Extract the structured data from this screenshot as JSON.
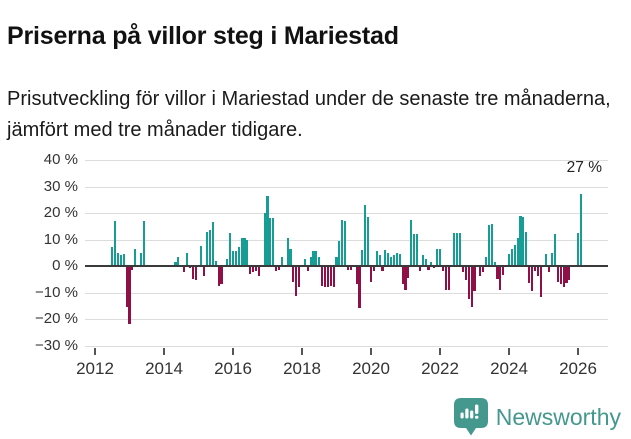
{
  "header": {
    "title": "Priserna på villor steg i Mariestad",
    "subtitle": "Prisutveckling för villor i Mariestad under de senaste tre månaderna, jämfört med tre månader tidigare."
  },
  "chart_data": {
    "type": "bar",
    "title": "Priserna på villor steg i Mariestad",
    "subtitle": "Prisutveckling för villor i Mariestad under de senaste tre månaderna, jämfört med tre månader tidigare.",
    "unit": "%",
    "frequency": "monthly",
    "start_month": "2012-07",
    "end_month": "2026-02",
    "values": [
      7,
      17,
      5,
      4,
      4.5,
      -15,
      -21.5,
      -1,
      6.5,
      0,
      5,
      17,
      0,
      0,
      0,
      0,
      0,
      0,
      0,
      0,
      0,
      0,
      1.5,
      3.5,
      0,
      -2,
      5,
      -0.5,
      -4.5,
      -5,
      0,
      7.5,
      -3.5,
      13,
      13.5,
      16.5,
      2,
      -7,
      -6.5,
      0,
      2.5,
      12.5,
      5.5,
      5.5,
      7,
      10.5,
      10.5,
      10,
      -2.5,
      -2,
      -1.5,
      -3.5,
      0,
      20,
      26.5,
      18,
      18,
      -1.5,
      -1,
      3.5,
      0,
      10.5,
      6.5,
      -5.5,
      -11,
      -7.5,
      0,
      2.5,
      -1.5,
      3.5,
      5.5,
      5.5,
      3.5,
      -7,
      -7.5,
      -7.5,
      -7,
      -7.5,
      3.5,
      9.5,
      17.5,
      17,
      -1,
      -1,
      0,
      -6.5,
      -15.5,
      6,
      23,
      18.5,
      -5.5,
      -1.5,
      5.5,
      4,
      -1.5,
      6,
      5,
      3.5,
      4,
      5,
      4.5,
      -6.5,
      -8.5,
      -4,
      17.5,
      12,
      12,
      -1.5,
      4,
      2.5,
      -1,
      1.5,
      -0.5,
      6.5,
      6.5,
      -1.5,
      -8.5,
      -8.5,
      0,
      12.5,
      12.5,
      12.5,
      -2,
      -5,
      -12,
      -15,
      -9,
      0,
      -3.5,
      -2,
      3.5,
      15.5,
      16,
      1.5,
      -4.5,
      -8.5,
      -3,
      0,
      4.5,
      6.5,
      8,
      10.5,
      19,
      18.5,
      13,
      -6,
      -9,
      -1.5,
      -3.5,
      -11.5,
      0,
      4.5,
      -2,
      5,
      12,
      -5.5,
      -6.5,
      -7.5,
      -6,
      -5,
      0,
      0,
      12.5,
      27
    ],
    "yticks": [
      40,
      30,
      20,
      10,
      0,
      -10,
      -20,
      -30
    ],
    "ytick_suffix": " %",
    "ylim": [
      -30,
      45
    ],
    "xticks": [
      2012,
      2014,
      2016,
      2018,
      2020,
      2022,
      2024,
      2026
    ],
    "annotation": {
      "text": "27 %",
      "value": 27
    },
    "colors": {
      "positive": "#169E96",
      "negative": "#8F1046",
      "grid": "#dcdcdc",
      "axis": "#3a3a3a",
      "labels": "#333333"
    },
    "grid": true,
    "legend": false
  },
  "footer": {
    "brand": "Newsworthy",
    "logo_color": "#45988E"
  }
}
